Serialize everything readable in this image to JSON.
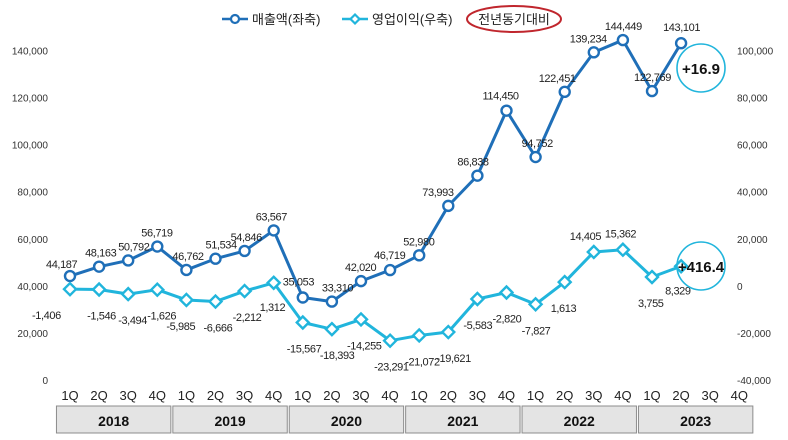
{
  "chart_data": {
    "type": "line",
    "title": "",
    "xlabel": "",
    "ylabel": "",
    "x_quarters": [
      "1Q",
      "2Q",
      "3Q",
      "4Q",
      "1Q",
      "2Q",
      "3Q",
      "4Q",
      "1Q",
      "2Q",
      "3Q",
      "4Q",
      "1Q",
      "2Q",
      "3Q",
      "4Q",
      "1Q",
      "2Q",
      "3Q",
      "4Q",
      "1Q",
      "2Q",
      "3Q",
      "4Q"
    ],
    "x_years": [
      "2018",
      "2019",
      "2020",
      "2021",
      "2022",
      "2023"
    ],
    "left_axis": {
      "ylim": [
        0,
        150000
      ],
      "ticks": [
        0,
        20000,
        40000,
        60000,
        80000,
        100000,
        120000,
        140000
      ],
      "tick_labels": [
        "0",
        "20,000",
        "40,000",
        "60,000",
        "80,000",
        "100,000",
        "120,000",
        "140,000"
      ]
    },
    "right_axis": {
      "ylim": [
        -40000,
        110000
      ],
      "ticks": [
        -40000,
        -20000,
        0,
        20000,
        40000,
        60000,
        80000,
        100000
      ],
      "tick_labels": [
        "-40,000",
        "-20,000",
        "0",
        "20,000",
        "40,000",
        "60,000",
        "80,000",
        "100,000"
      ]
    },
    "series": [
      {
        "name": "매출액(좌축)",
        "axis": "left",
        "color": "#1f6fb8",
        "marker": "circle",
        "values": [
          44187,
          48163,
          50792,
          56719,
          46762,
          51534,
          54846,
          63567,
          35053,
          33310,
          42020,
          46719,
          52980,
          73993,
          86838,
          114450,
          94752,
          122451,
          139234,
          144449,
          122769,
          143101,
          null,
          null
        ],
        "labels": [
          "44,187",
          "48,163",
          "50,792",
          "56,719",
          "46,762",
          "51,534",
          "54,846",
          "63,567",
          "35,053",
          "33,310",
          "42,020",
          "46,719",
          "52,980",
          "73,993",
          "86,838",
          "114,450",
          "94,752",
          "122,451",
          "139,234",
          "144,449",
          "122,769",
          "143,101",
          "",
          ""
        ]
      },
      {
        "name": "영업이익(우축)",
        "axis": "right",
        "color": "#21b5dc",
        "marker": "diamond",
        "values": [
          -1406,
          -1546,
          -3494,
          -1626,
          -5985,
          -6666,
          -2212,
          1312,
          -15567,
          -18393,
          -14255,
          -23291,
          -21072,
          -19621,
          -5583,
          -2820,
          -7827,
          1613,
          14405,
          15362,
          3755,
          8329,
          null,
          null
        ],
        "labels": [
          "-1,406",
          "-1,546",
          "-3,494",
          "-1,626",
          "-5,985",
          "-6,666",
          "-2,212",
          "1,312",
          "-15,567",
          "-18,393",
          "-14,255",
          "-23,291",
          "-21,072",
          "-19,621",
          "-5,583",
          "-2,820",
          "-7,827",
          "1,613",
          "14,405",
          "15,362",
          "3,755",
          "8,329",
          "",
          ""
        ]
      }
    ],
    "legend": {
      "placement": "top-center",
      "extra_label": "전년동기대비"
    },
    "callouts": [
      {
        "text": "+16.9",
        "series": "매출액(좌축)"
      },
      {
        "text": "+416.4",
        "series": "영업이익(우축)"
      }
    ],
    "grid": false,
    "colors": {
      "sales": "#1f6fb8",
      "profit": "#21b5dc",
      "legend_ellipse": "#c0262d",
      "callout_circle": "#21b5dc"
    }
  }
}
